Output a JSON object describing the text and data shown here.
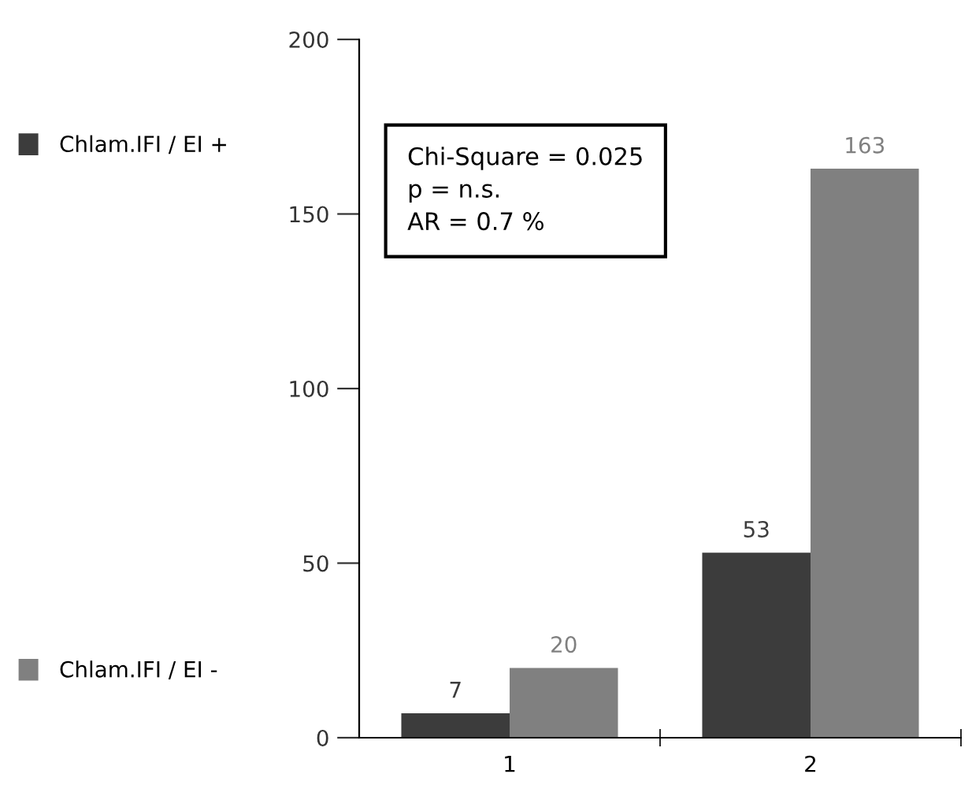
{
  "chart_data": {
    "type": "bar",
    "categories": [
      "1",
      "2"
    ],
    "series": [
      {
        "name": "Chlam.IFI / EI +",
        "color": "#3c3c3c",
        "values": [
          7,
          53
        ]
      },
      {
        "name": "Chlam.IFI / EI -",
        "color": "#808080",
        "values": [
          20,
          163
        ]
      }
    ],
    "ylim": [
      0,
      200
    ],
    "yticks": [
      0,
      50,
      100,
      150,
      200
    ],
    "grid": false,
    "legend": "left",
    "data_labels": true,
    "annotations": [
      "Chi-Square = 0.025\np = n.s.\nAR = 0.7 %"
    ]
  }
}
